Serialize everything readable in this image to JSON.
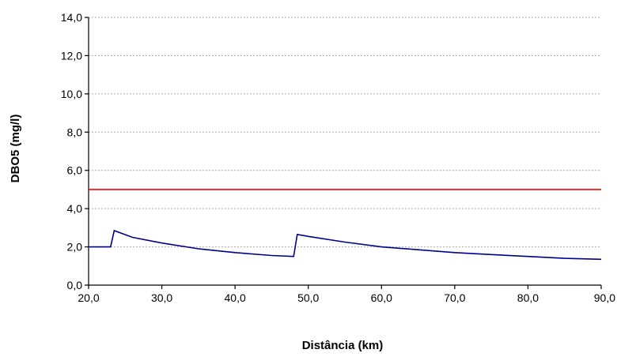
{
  "chart_data": {
    "type": "line",
    "title": "",
    "xlabel": "Distância (km)",
    "ylabel": "DBO5  (mg/l)",
    "xlim": [
      20,
      90
    ],
    "ylim": [
      0,
      14
    ],
    "x_ticks": [
      "20,0",
      "30,0",
      "40,0",
      "50,0",
      "60,0",
      "70,0",
      "80,0",
      "90,0"
    ],
    "y_ticks": [
      "0,0",
      "2,0",
      "4,0",
      "6,0",
      "8,0",
      "10,0",
      "12,0",
      "14,0"
    ],
    "grid": "horizontal",
    "legend": "none",
    "series": [
      {
        "color": "#00008b",
        "x": [
          20,
          23,
          23.5,
          26,
          30,
          35,
          40,
          45,
          48,
          48.5,
          50,
          55,
          60,
          65,
          70,
          75,
          80,
          85,
          90
        ],
        "y": [
          2.0,
          2.0,
          2.85,
          2.5,
          2.2,
          1.9,
          1.7,
          1.55,
          1.5,
          2.65,
          2.55,
          2.25,
          2.0,
          1.85,
          1.7,
          1.6,
          1.5,
          1.4,
          1.35
        ]
      },
      {
        "color": "#ff0000",
        "x": [
          20,
          90
        ],
        "y": [
          5.0,
          5.0
        ]
      }
    ]
  }
}
